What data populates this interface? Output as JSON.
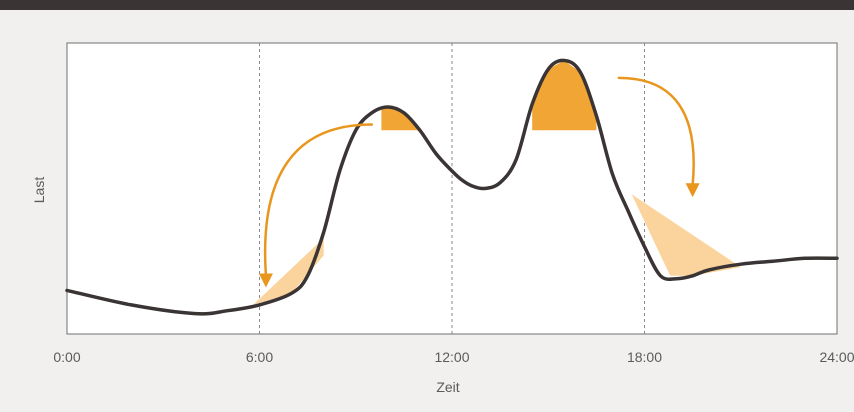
{
  "chart_data": {
    "type": "line",
    "title": "",
    "xlabel": "Zeit",
    "ylabel": "Last",
    "x_tick_labels": [
      "0:00",
      "6:00",
      "12:00",
      "18:00",
      "24:00"
    ],
    "x_tick_values": [
      0,
      6,
      12,
      18,
      24
    ],
    "xlim": [
      0,
      24
    ],
    "ylim": [
      0,
      1
    ],
    "grid": "vertical dashed at 6:00, 12:00, 18:00",
    "colors": {
      "line": "#3a3434",
      "peak_fill": "#f0a534",
      "valley_fill": "#fad39d",
      "arrow": "#e8961e",
      "frame": "#6f6f6f",
      "background": "#ffffff"
    },
    "series": [
      {
        "x": [
          0,
          2,
          4,
          5,
          6,
          7,
          7.5,
          8,
          8.5,
          9,
          9.5,
          10,
          10.5,
          11,
          11.5,
          12,
          12.3,
          12.6,
          13,
          13.5,
          14,
          14.5,
          15,
          15.5,
          16,
          16.5,
          17,
          17.5,
          18,
          18.5,
          19,
          19.5,
          20,
          21,
          22,
          23,
          24
        ],
        "y": [
          0.15,
          0.1,
          0.07,
          0.08,
          0.1,
          0.14,
          0.2,
          0.35,
          0.56,
          0.7,
          0.76,
          0.78,
          0.76,
          0.7,
          0.62,
          0.56,
          0.53,
          0.51,
          0.5,
          0.52,
          0.6,
          0.79,
          0.91,
          0.94,
          0.9,
          0.75,
          0.55,
          0.42,
          0.3,
          0.2,
          0.19,
          0.2,
          0.22,
          0.24,
          0.25,
          0.26,
          0.26
        ]
      }
    ],
    "shaded_regions": [
      {
        "kind": "peak",
        "x_range": [
          9.8,
          11.2
        ],
        "cut_level": 0.7
      },
      {
        "kind": "peak",
        "x_range": [
          14.5,
          16.5
        ],
        "cut_level": 0.7
      },
      {
        "kind": "valley",
        "points": [
          [
            5.8,
            0.1
          ],
          [
            8.0,
            0.33
          ],
          [
            8.0,
            0.27
          ],
          [
            7.0,
            0.14
          ]
        ]
      },
      {
        "kind": "valley",
        "points": [
          [
            17.6,
            0.48
          ],
          [
            21.0,
            0.23
          ],
          [
            19.5,
            0.2
          ],
          [
            18.8,
            0.2
          ]
        ]
      }
    ],
    "arrows": [
      {
        "from": [
          9.5,
          0.72
        ],
        "to": [
          6.2,
          0.16
        ]
      },
      {
        "from": [
          17.2,
          0.88
        ],
        "to": [
          19.5,
          0.47
        ]
      }
    ]
  }
}
